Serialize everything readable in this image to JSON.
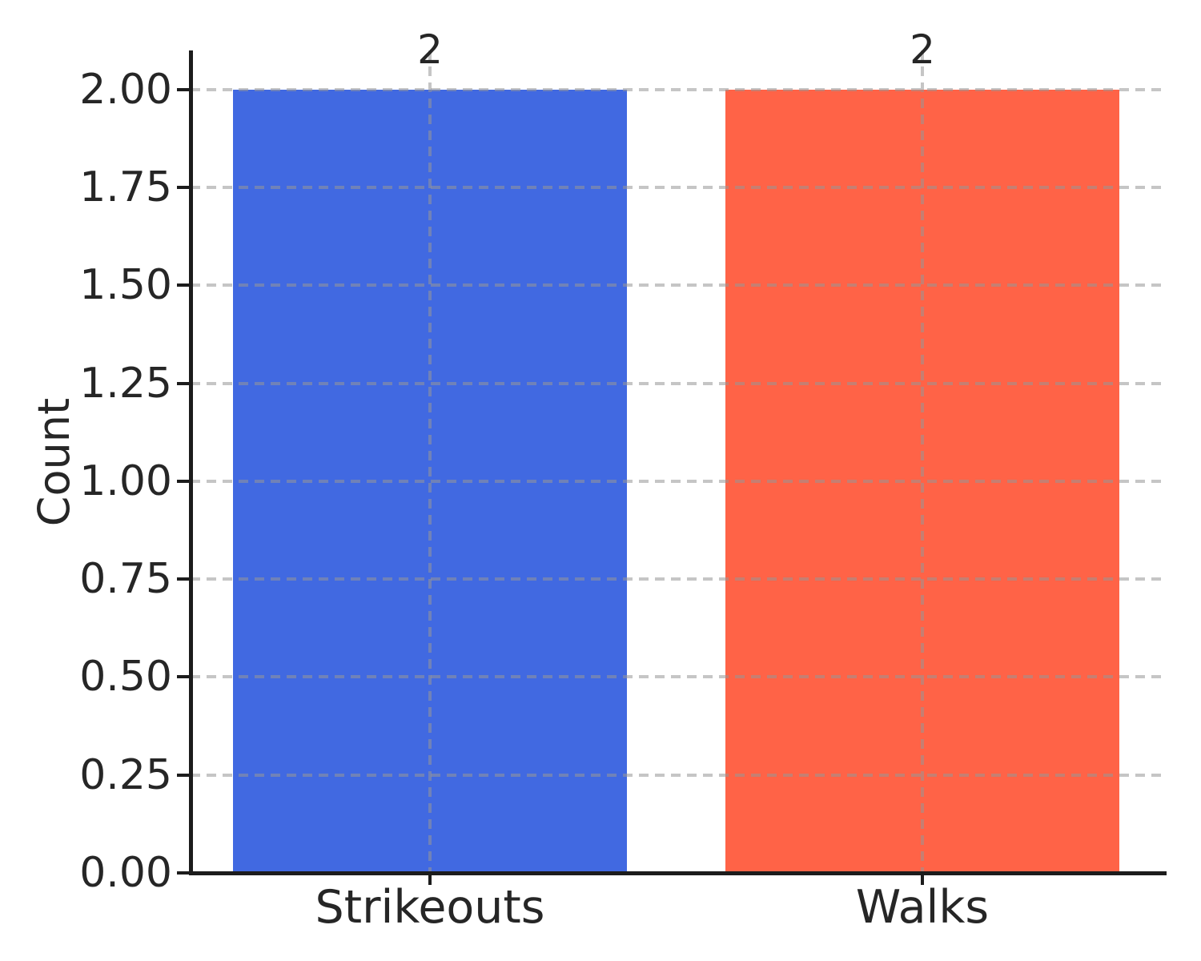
{
  "chart_data": {
    "type": "bar",
    "title": "",
    "xlabel": "",
    "ylabel": "Count",
    "categories": [
      "Strikeouts",
      "Walks"
    ],
    "values": [
      2,
      2
    ],
    "bar_labels": [
      "2",
      "2"
    ],
    "bar_colors": [
      "#4169E1",
      "#FF6347"
    ],
    "ylim": [
      0,
      2.1
    ],
    "yticks": {
      "values": [
        0,
        0.25,
        0.5,
        0.75,
        1,
        1.25,
        1.5,
        1.75,
        2
      ],
      "labels": [
        "0.00",
        "0.25",
        "0.50",
        "0.75",
        "1.00",
        "1.25",
        "1.50",
        "1.75",
        "2.00"
      ]
    },
    "grid": "dashed, horizontal and vertical, drawn over bars",
    "legend_position": "none",
    "colors": {
      "grid": "rgba(150,150,150,0.55)",
      "spine": "#1c1c1c",
      "text": "#262626",
      "background": "#ffffff"
    }
  }
}
